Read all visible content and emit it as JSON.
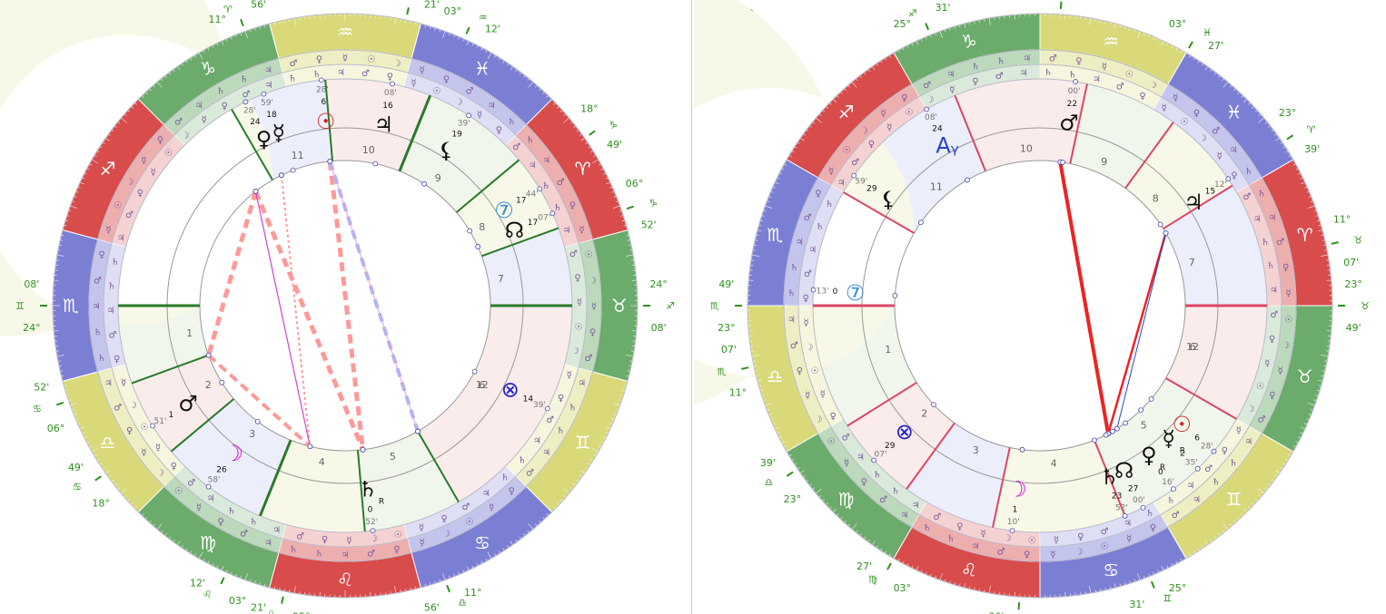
{
  "charts": [
    {
      "label": "1",
      "signs": [
        {
          "glyph": "♉",
          "color": "#6bab6b"
        },
        {
          "glyph": "♈",
          "color": "#d84c4c"
        },
        {
          "glyph": "♓",
          "color": "#7b7fd4"
        },
        {
          "glyph": "♒",
          "color": "#d9d97a"
        },
        {
          "glyph": "♑",
          "color": "#6bab6b"
        },
        {
          "glyph": "♐",
          "color": "#d84c4c"
        },
        {
          "glyph": "♏",
          "color": "#7b7fd4"
        },
        {
          "glyph": "♎",
          "color": "#d9d97a"
        },
        {
          "glyph": "♍",
          "color": "#6bab6b"
        },
        {
          "glyph": "♌",
          "color": "#d84c4c"
        },
        {
          "glyph": "♋",
          "color": "#7b7fd4"
        },
        {
          "glyph": "♊",
          "color": "#d9d97a"
        }
      ],
      "cusp_labels": [
        {
          "deg": "24°",
          "min": "08'",
          "sym": "♊"
        },
        {
          "deg": "06°",
          "min": "52'",
          "sym": "♋"
        },
        {
          "deg": "18°",
          "min": "49'",
          "sym": "♋"
        },
        {
          "deg": "03°",
          "min": "12'",
          "sym": "♌"
        },
        {
          "deg": "25°",
          "min": "21'",
          "sym": "♌"
        },
        {
          "deg": "11°",
          "min": "56'",
          "sym": "♎"
        },
        {
          "deg": "24°",
          "min": "08'",
          "sym": "♐"
        },
        {
          "deg": "06°",
          "min": "52'",
          "sym": "♑"
        },
        {
          "deg": "18°",
          "min": "49'",
          "sym": "♑"
        },
        {
          "deg": "03°",
          "min": "12'",
          "sym": "♒"
        },
        {
          "deg": "25°",
          "min": "21'",
          "sym": "♒"
        },
        {
          "deg": "11°",
          "min": "56'",
          "sym": "♈"
        }
      ],
      "house_numbers": [
        "1",
        "2",
        "3",
        "4",
        "5",
        "6",
        "7",
        "8",
        "9",
        "10",
        "11",
        "12"
      ],
      "planets": [
        {
          "name": "Sun",
          "glyph": "☉",
          "deg": "6",
          "min": "28'",
          "color": "#cc2222"
        },
        {
          "name": "Jupiter",
          "glyph": "♃",
          "deg": "16",
          "min": "08'",
          "color": "#111111"
        },
        {
          "name": "Lilith",
          "glyph": "⚸",
          "deg": "19",
          "min": "39'",
          "color": "#111111"
        },
        {
          "name": "Venus",
          "glyph": "♀",
          "deg": "24",
          "min": "28'",
          "color": "#111111"
        },
        {
          "name": "Mercury",
          "glyph": "☿",
          "deg": "18",
          "min": "59'",
          "color": "#111111"
        },
        {
          "name": "Node",
          "glyph": "☊",
          "deg": "17",
          "min": "07'",
          "color": "#111111"
        },
        {
          "name": "Uranus",
          "glyph": "⑦",
          "deg": "17",
          "min": "44'",
          "color": "#3a8fd8"
        },
        {
          "name": "Fortune",
          "glyph": "⊗",
          "deg": "14",
          "min": "39'",
          "color": "#2222cc"
        },
        {
          "name": "Saturn",
          "glyph": "♄",
          "deg": "0",
          "min": "52'",
          "color": "#111111",
          "retro": "R"
        },
        {
          "name": "Moon",
          "glyph": "☽",
          "deg": "26",
          "min": "58'",
          "color": "#d400d4"
        },
        {
          "name": "Mars",
          "glyph": "♂",
          "deg": "1",
          "min": "51'",
          "color": "#111111"
        }
      ]
    },
    {
      "label": "2",
      "signs": [
        {
          "glyph": "♉",
          "color": "#6bab6b"
        },
        {
          "glyph": "♈",
          "color": "#d84c4c"
        },
        {
          "glyph": "♓",
          "color": "#7b7fd4"
        },
        {
          "glyph": "♒",
          "color": "#d9d97a"
        },
        {
          "glyph": "♑",
          "color": "#6bab6b"
        },
        {
          "glyph": "♐",
          "color": "#d84c4c"
        },
        {
          "glyph": "♏",
          "color": "#7b7fd4"
        },
        {
          "glyph": "♎",
          "color": "#d9d97a"
        },
        {
          "glyph": "♍",
          "color": "#6bab6b"
        },
        {
          "glyph": "♌",
          "color": "#d84c4c"
        },
        {
          "glyph": "♋",
          "color": "#7b7fd4"
        },
        {
          "glyph": "♊",
          "color": "#d9d97a"
        }
      ],
      "cusp_labels": [
        {
          "deg": "23°",
          "min": "49'",
          "sym": "♏"
        },
        {
          "deg": "11°",
          "min": "07'",
          "sym": "♏"
        },
        {
          "deg": "23°",
          "min": "39'",
          "sym": "♎"
        },
        {
          "deg": "03°",
          "min": "27'",
          "sym": "♍"
        },
        {
          "deg": "14°",
          "min": "36'",
          "sym": "♌"
        },
        {
          "deg": "25°",
          "min": "31'",
          "sym": "♊"
        },
        {
          "deg": "23°",
          "min": "49'",
          "sym": "♉"
        },
        {
          "deg": "11°",
          "min": "07'",
          "sym": "♉"
        },
        {
          "deg": "23°",
          "min": "39'",
          "sym": "♈"
        },
        {
          "deg": "03°",
          "min": "27'",
          "sym": "♓"
        },
        {
          "deg": "14°",
          "min": "36'",
          "sym": "♒"
        },
        {
          "deg": "25°",
          "min": "31'",
          "sym": "♐"
        }
      ],
      "house_numbers": [
        "1",
        "2",
        "3",
        "4",
        "5",
        "6",
        "7",
        "8",
        "9",
        "10",
        "11",
        "12"
      ],
      "planets": [
        {
          "name": "Mars",
          "glyph": "♂",
          "deg": "22",
          "min": "00'",
          "color": "#111111"
        },
        {
          "name": "Jupiter",
          "glyph": "♃",
          "deg": "15",
          "min": "12'",
          "color": "#111111"
        },
        {
          "name": "Vertex",
          "glyph": "Aᵧ",
          "deg": "24",
          "min": "08'",
          "color": "#2a3fcf"
        },
        {
          "name": "Lilith",
          "glyph": "⚸",
          "deg": "29",
          "min": "59'",
          "color": "#111111"
        },
        {
          "name": "Uranus",
          "glyph": "⑦",
          "deg": "0",
          "min": "13'",
          "color": "#3a8fd8"
        },
        {
          "name": "Fortune",
          "glyph": "⊗",
          "deg": "29",
          "min": "07'",
          "color": "#2222cc"
        },
        {
          "name": "Moon",
          "glyph": "☽",
          "deg": "1",
          "min": "10'",
          "color": "#d400d4"
        },
        {
          "name": "Saturn",
          "glyph": "♄",
          "deg": "23",
          "min": "52'",
          "color": "#111111"
        },
        {
          "name": "Node",
          "glyph": "☊",
          "deg": "27",
          "min": "00'",
          "color": "#111111"
        },
        {
          "name": "Venus",
          "glyph": "♀",
          "deg": "0",
          "min": "16'",
          "color": "#111111",
          "retro": "R"
        },
        {
          "name": "Mercury",
          "glyph": "☿",
          "deg": "2",
          "min": "35'",
          "color": "#111111",
          "retro": "R"
        },
        {
          "name": "Sun",
          "glyph": "☉",
          "deg": "6",
          "min": "28'",
          "color": "#cc2222"
        }
      ]
    }
  ],
  "ruler_glyphs": [
    "♂",
    "♀",
    "☿",
    "☽",
    "☉",
    "☿",
    "♀",
    "♂",
    "♃",
    "♄",
    "♄",
    "♃"
  ]
}
